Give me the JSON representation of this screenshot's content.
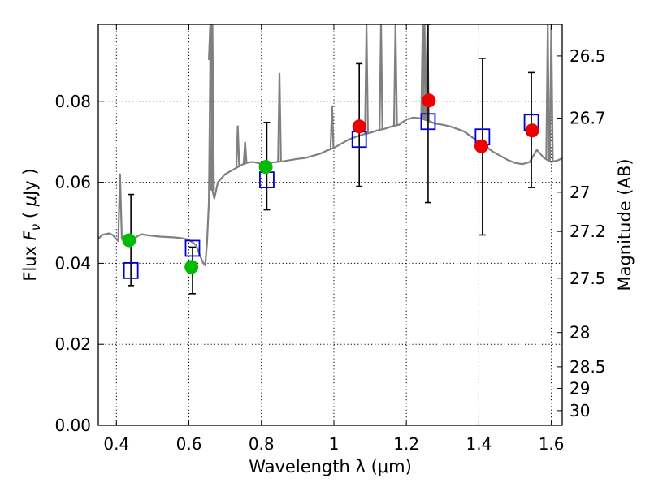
{
  "chart_data": {
    "type": "scatter",
    "title": "",
    "xlabel": "Wavelength  λ (μm)",
    "ylabel": "Flux  F_ν  ( μJy )",
    "ylabel_parts": [
      "Flux  ",
      "F",
      "ν",
      "  ( ",
      "μ",
      "Jy )"
    ],
    "y2label": "Magnitude (AB)",
    "xlim": [
      0.35,
      1.63
    ],
    "ylim": [
      0.0,
      0.099
    ],
    "grid": true,
    "x_ticks": [
      {
        "value": 0.4,
        "label": "0.4"
      },
      {
        "value": 0.6,
        "label": "0.6"
      },
      {
        "value": 0.8,
        "label": "0.8"
      },
      {
        "value": 1.0,
        "label": "1"
      },
      {
        "value": 1.2,
        "label": "1.2"
      },
      {
        "value": 1.4,
        "label": "1.4"
      },
      {
        "value": 1.6,
        "label": "1.6"
      }
    ],
    "y_ticks": [
      {
        "value": 0.0,
        "label": "0.00"
      },
      {
        "value": 0.02,
        "label": "0.02"
      },
      {
        "value": 0.04,
        "label": "0.04"
      },
      {
        "value": 0.06,
        "label": "0.06"
      },
      {
        "value": 0.08,
        "label": "0.08"
      }
    ],
    "y2_ticks": [
      {
        "value": 26.5,
        "label": "26.5"
      },
      {
        "value": 26.7,
        "label": "26.7"
      },
      {
        "value": 27.0,
        "label": "27"
      },
      {
        "value": 27.2,
        "label": "27.2"
      },
      {
        "value": 27.5,
        "label": "27.5"
      },
      {
        "value": 28.0,
        "label": "28"
      },
      {
        "value": 28.5,
        "label": "28.5"
      },
      {
        "value": 29.0,
        "label": "29"
      },
      {
        "value": 30.0,
        "label": "30"
      }
    ],
    "series": [
      {
        "kind": "model-spectrum",
        "color": "#808080",
        "x": [
          0.35,
          0.36,
          0.37,
          0.38,
          0.39,
          0.4,
          0.405,
          0.41,
          0.415,
          0.42,
          0.43,
          0.44,
          0.45,
          0.46,
          0.47,
          0.48,
          0.5,
          0.52,
          0.54,
          0.56,
          0.58,
          0.6,
          0.62,
          0.63,
          0.64,
          0.645,
          0.65,
          0.655,
          0.66,
          0.665,
          0.67,
          0.675,
          0.68,
          0.69,
          0.7,
          0.71,
          0.72,
          0.73,
          0.74,
          0.75,
          0.76,
          0.77,
          0.78,
          0.79,
          0.8,
          0.82,
          0.84,
          0.86,
          0.88,
          0.9,
          0.92,
          0.94,
          0.96,
          0.98,
          1.0,
          1.02,
          1.04,
          1.06,
          1.08,
          1.1,
          1.12,
          1.14,
          1.16,
          1.18,
          1.2,
          1.22,
          1.24,
          1.26,
          1.28,
          1.3,
          1.32,
          1.34,
          1.36,
          1.38,
          1.4,
          1.42,
          1.44,
          1.46,
          1.48,
          1.5,
          1.52,
          1.54,
          1.56,
          1.58,
          1.6,
          1.62,
          1.63
        ],
        "y": [
          0.046,
          0.047,
          0.0472,
          0.0474,
          0.047,
          0.046,
          0.0455,
          0.062,
          0.046,
          0.0462,
          0.047,
          0.0465,
          0.0462,
          0.0468,
          0.0472,
          0.047,
          0.0468,
          0.0466,
          0.0465,
          0.0464,
          0.0462,
          0.0458,
          0.0445,
          0.042,
          0.04,
          0.0395,
          0.045,
          0.055,
          0.099,
          0.058,
          0.056,
          0.058,
          0.06,
          0.061,
          0.062,
          0.0625,
          0.063,
          0.0635,
          0.064,
          0.0645,
          0.0648,
          0.065,
          0.065,
          0.0648,
          0.0645,
          0.0648,
          0.065,
          0.0652,
          0.0655,
          0.0658,
          0.066,
          0.0665,
          0.067,
          0.0678,
          0.0685,
          0.0695,
          0.0705,
          0.0712,
          0.0718,
          0.0722,
          0.0728,
          0.0732,
          0.0738,
          0.0742,
          0.0755,
          0.076,
          0.0758,
          0.0752,
          0.0745,
          0.0742,
          0.0738,
          0.0732,
          0.0725,
          0.0712,
          0.07,
          0.0688,
          0.0675,
          0.0665,
          0.0655,
          0.0648,
          0.0645,
          0.065,
          0.068,
          0.066,
          0.065,
          0.0655,
          0.066
        ]
      },
      {
        "kind": "spectrum-lines",
        "color": "#808080",
        "x": [
          0.659,
          0.665,
          0.735,
          0.755,
          0.85,
          0.995,
          1.09,
          1.13,
          1.17,
          1.245,
          1.25,
          1.258,
          1.59,
          1.6
        ],
        "y_peak": [
          0.099,
          0.099,
          0.074,
          0.07,
          0.087,
          0.079,
          0.099,
          0.099,
          0.099,
          0.099,
          0.099,
          0.099,
          0.099,
          0.099
        ]
      },
      {
        "kind": "photometry-errorbars",
        "color": "#000000",
        "x": [
          0.44,
          0.61,
          0.815,
          1.07,
          1.26,
          1.41,
          1.545
        ],
        "y_low": [
          0.0345,
          0.0325,
          0.0532,
          0.059,
          0.055,
          0.047,
          0.0587
        ],
        "y_high": [
          0.057,
          0.044,
          0.0748,
          0.0893,
          0.099,
          0.0906,
          0.0871
        ]
      },
      {
        "kind": "model-photometry-squares",
        "color": "#0000cc",
        "x": [
          0.44,
          0.61,
          0.815,
          1.07,
          1.26,
          1.41,
          1.545
        ],
        "y": [
          0.0382,
          0.0437,
          0.0606,
          0.0706,
          0.075,
          0.0712,
          0.0748
        ]
      },
      {
        "kind": "observed-detections",
        "color": "#00bb00",
        "x": [
          0.435,
          0.607,
          0.812
        ],
        "y": [
          0.0457,
          0.0391,
          0.0638
        ]
      },
      {
        "kind": "observed-detections",
        "color": "#ee0000",
        "x": [
          1.07,
          1.262,
          1.407,
          1.547
        ],
        "y": [
          0.0738,
          0.0802,
          0.0689,
          0.0728
        ]
      }
    ]
  }
}
